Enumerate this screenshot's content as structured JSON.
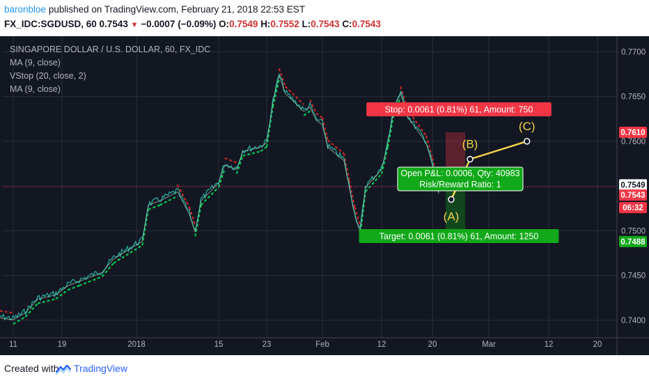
{
  "header": {
    "author": "baronbloe",
    "published_text": "published on TradingView.com, February 21, 2018 22:53 EST",
    "symbol": "FX_IDC:SGDUSD, 60",
    "last": "0.7543",
    "change": "−0.0007 (−0.09%)",
    "ohlc": [
      {
        "label": "O:",
        "value": "0.7549"
      },
      {
        "label": "H:",
        "value": "0.7552"
      },
      {
        "label": "L:",
        "value": "0.7543"
      },
      {
        "label": "C:",
        "value": "0.7543"
      }
    ]
  },
  "legend": [
    "SINGAPORE DOLLAR / U.S. DOLLAR, 60, FX_IDC",
    "MA (9, close)",
    "VStop (20, close, 2)",
    "MA (9, close)"
  ],
  "footer": {
    "created_with": "Created with",
    "brand": "TradingView"
  },
  "colors": {
    "background": "#131722",
    "grid": "#2a2e39",
    "up": "#26a69a",
    "ma": "#9ed9b5",
    "vstop_up": "#00c853",
    "vstop_down": "#c62828",
    "stop": "#f23645",
    "target": "#11a819",
    "wave": "#f5d44b",
    "price_line": "#e91e63"
  },
  "chart_data": {
    "type": "line",
    "title": "SINGAPORE DOLLAR / U.S. DOLLAR, 60, FX_IDC",
    "y_ticks": [
      0.74,
      0.745,
      0.75,
      0.755,
      0.76,
      0.765,
      0.77
    ],
    "y_tick_labels": [
      "0.7400",
      "0.7450",
      "0.7500",
      "0.7550",
      "0.7600",
      "0.7650",
      "0.7700"
    ],
    "ylim": [
      0.7368,
      0.7712
    ],
    "x_tick_labels": [
      "11",
      "19",
      "2018",
      "15",
      "23",
      "Feb",
      "12",
      "20",
      "Mar",
      "12",
      "20"
    ],
    "x_tick_dates": [
      "2017-12-11",
      "2017-12-19",
      "2018-01-01",
      "2018-01-15",
      "2018-01-23",
      "2018-02-01",
      "2018-02-12",
      "2018-02-20",
      "2018-03-01",
      "2018-03-12",
      "2018-03-20"
    ],
    "price_series": {
      "name": "SGDUSD",
      "x": [
        "2017-12-08",
        "2017-12-11",
        "2017-12-13",
        "2017-12-15",
        "2017-12-18",
        "2017-12-20",
        "2017-12-22",
        "2017-12-26",
        "2017-12-28",
        "2018-01-02",
        "2018-01-03",
        "2018-01-05",
        "2018-01-08",
        "2018-01-10",
        "2018-01-11",
        "2018-01-12",
        "2018-01-15",
        "2018-01-16",
        "2018-01-18",
        "2018-01-19",
        "2018-01-22",
        "2018-01-23",
        "2018-01-24",
        "2018-01-25",
        "2018-01-26",
        "2018-01-29",
        "2018-01-30",
        "2018-01-31",
        "2018-02-01",
        "2018-02-02",
        "2018-02-05",
        "2018-02-06",
        "2018-02-07",
        "2018-02-08",
        "2018-02-09",
        "2018-02-12",
        "2018-02-13",
        "2018-02-14",
        "2018-02-15",
        "2018-02-16",
        "2018-02-19",
        "2018-02-20",
        "2018-02-21"
      ],
      "values": [
        0.7405,
        0.7402,
        0.741,
        0.7425,
        0.743,
        0.744,
        0.7445,
        0.7455,
        0.747,
        0.749,
        0.753,
        0.7535,
        0.7545,
        0.752,
        0.75,
        0.7535,
        0.7555,
        0.7575,
        0.757,
        0.759,
        0.7595,
        0.76,
        0.7645,
        0.7675,
        0.7655,
        0.7635,
        0.764,
        0.7625,
        0.762,
        0.7595,
        0.758,
        0.755,
        0.752,
        0.75,
        0.755,
        0.757,
        0.76,
        0.764,
        0.7655,
        0.763,
        0.76,
        0.7575,
        0.7543
      ]
    },
    "ma_label": "MA (9, close)",
    "vstop_label": "VStop (20, close, 2)",
    "last_price": {
      "value": 0.7549,
      "label": "0.7549"
    },
    "current_price": {
      "value": 0.7543,
      "label": "0.7543",
      "countdown": "06:32"
    },
    "stop_price": {
      "value": 0.761,
      "label": "0.7610"
    },
    "target_price": {
      "value": 0.7488,
      "label": "0.7488"
    },
    "position": {
      "stop_text": "Stop: 0.0061 (0.81%) 61, Amount: 750",
      "target_text": "Target: 0.0061 (0.81%) 61, Amount: 1250",
      "pnl_text": "Open P&L: 0.0006, Qty: 40983",
      "rr_text": "Risk/Reward Ratio: 1"
    },
    "waves": [
      {
        "label": "(A)",
        "date": "2018-02-23",
        "value": 0.7535
      },
      {
        "label": "(B)",
        "date": "2018-02-26",
        "value": 0.758
      },
      {
        "label": "(C)",
        "date": "2018-03-08",
        "value": 0.76
      }
    ]
  }
}
